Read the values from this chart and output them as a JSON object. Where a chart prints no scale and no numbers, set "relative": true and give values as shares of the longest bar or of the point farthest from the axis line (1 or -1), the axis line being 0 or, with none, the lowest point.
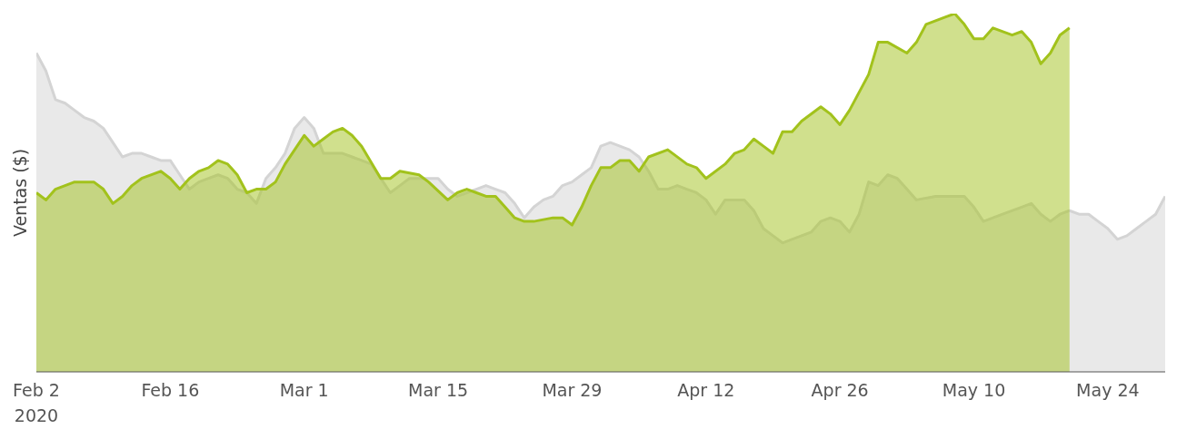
{
  "chart_data": {
    "type": "area",
    "ylabel": "Ventas ($)",
    "relative": true,
    "grid": false,
    "legend": false,
    "marker": "none",
    "xlim": [
      "2020-02-02",
      "2020-05-30"
    ],
    "xticks": [
      {
        "value": "2020-02-02",
        "label": "Feb 2\n2020"
      },
      {
        "value": "2020-02-16",
        "label": "Feb 16"
      },
      {
        "value": "2020-03-01",
        "label": "Mar 1"
      },
      {
        "value": "2020-03-15",
        "label": "Mar 15"
      },
      {
        "value": "2020-03-29",
        "label": "Mar 29"
      },
      {
        "value": "2020-04-12",
        "label": "Apr 12"
      },
      {
        "value": "2020-04-26",
        "label": "Apr 26"
      },
      {
        "value": "2020-05-10",
        "label": "May 10"
      },
      {
        "value": "2020-05-24",
        "label": "May 24"
      }
    ],
    "series": [
      {
        "color": "#d4d4d4",
        "x": [
          "2020-02-02",
          "2020-02-03",
          "2020-02-04",
          "2020-02-05",
          "2020-02-06",
          "2020-02-07",
          "2020-02-08",
          "2020-02-09",
          "2020-02-10",
          "2020-02-11",
          "2020-02-12",
          "2020-02-13",
          "2020-02-14",
          "2020-02-15",
          "2020-02-16",
          "2020-02-17",
          "2020-02-18",
          "2020-02-19",
          "2020-02-20",
          "2020-02-21",
          "2020-02-22",
          "2020-02-23",
          "2020-02-24",
          "2020-02-25",
          "2020-02-26",
          "2020-02-27",
          "2020-02-28",
          "2020-02-29",
          "2020-03-01",
          "2020-03-02",
          "2020-03-03",
          "2020-03-04",
          "2020-03-05",
          "2020-03-06",
          "2020-03-07",
          "2020-03-08",
          "2020-03-09",
          "2020-03-10",
          "2020-03-11",
          "2020-03-12",
          "2020-03-13",
          "2020-03-14",
          "2020-03-15",
          "2020-03-16",
          "2020-03-17",
          "2020-03-18",
          "2020-03-19",
          "2020-03-20",
          "2020-03-21",
          "2020-03-22",
          "2020-03-23",
          "2020-03-24",
          "2020-03-25",
          "2020-03-26",
          "2020-03-27",
          "2020-03-28",
          "2020-03-29",
          "2020-03-30",
          "2020-03-31",
          "2020-04-01",
          "2020-04-02",
          "2020-04-03",
          "2020-04-04",
          "2020-04-05",
          "2020-04-06",
          "2020-04-07",
          "2020-04-08",
          "2020-04-09",
          "2020-04-10",
          "2020-04-11",
          "2020-04-12",
          "2020-04-13",
          "2020-04-14",
          "2020-04-15",
          "2020-04-16",
          "2020-04-17",
          "2020-04-18",
          "2020-04-19",
          "2020-04-20",
          "2020-04-22",
          "2020-04-23",
          "2020-04-24",
          "2020-04-25",
          "2020-04-26",
          "2020-04-27",
          "2020-04-28",
          "2020-04-29",
          "2020-04-30",
          "2020-05-01",
          "2020-05-02",
          "2020-05-03",
          "2020-05-04",
          "2020-05-06",
          "2020-05-08",
          "2020-05-09",
          "2020-05-10",
          "2020-05-11",
          "2020-05-12",
          "2020-05-13",
          "2020-05-15",
          "2020-05-16",
          "2020-05-17",
          "2020-05-18",
          "2020-05-19",
          "2020-05-20",
          "2020-05-21",
          "2020-05-22",
          "2020-05-23",
          "2020-05-24",
          "2020-05-25",
          "2020-05-26",
          "2020-05-27",
          "2020-05-28",
          "2020-05-29",
          "2020-05-30"
        ],
        "values": [
          0.89,
          0.84,
          0.76,
          0.75,
          0.73,
          0.71,
          0.7,
          0.68,
          0.64,
          0.6,
          0.61,
          0.61,
          0.6,
          0.59,
          0.59,
          0.55,
          0.51,
          0.53,
          0.54,
          0.55,
          0.54,
          0.51,
          0.5,
          0.47,
          0.54,
          0.57,
          0.61,
          0.68,
          0.71,
          0.68,
          0.61,
          0.61,
          0.61,
          0.6,
          0.59,
          0.58,
          0.54,
          0.5,
          0.52,
          0.54,
          0.54,
          0.54,
          0.54,
          0.51,
          0.49,
          0.5,
          0.51,
          0.52,
          0.51,
          0.5,
          0.47,
          0.43,
          0.46,
          0.48,
          0.49,
          0.52,
          0.53,
          0.55,
          0.57,
          0.63,
          0.64,
          0.63,
          0.62,
          0.6,
          0.56,
          0.51,
          0.51,
          0.52,
          0.51,
          0.5,
          0.48,
          0.44,
          0.48,
          0.48,
          0.48,
          0.45,
          0.4,
          0.38,
          0.36,
          0.38,
          0.39,
          0.42,
          0.43,
          0.42,
          0.39,
          0.44,
          0.53,
          0.52,
          0.55,
          0.54,
          0.51,
          0.48,
          0.49,
          0.49,
          0.49,
          0.46,
          0.42,
          0.43,
          0.44,
          0.46,
          0.47,
          0.44,
          0.42,
          0.44,
          0.45,
          0.44,
          0.44,
          0.42,
          0.4,
          0.37,
          0.38,
          0.4,
          0.42,
          0.44,
          0.49
        ]
      },
      {
        "color": "#a2c21c",
        "x": [
          "2020-02-02",
          "2020-02-03",
          "2020-02-04",
          "2020-02-06",
          "2020-02-08",
          "2020-02-09",
          "2020-02-10",
          "2020-02-11",
          "2020-02-12",
          "2020-02-13",
          "2020-02-15",
          "2020-02-16",
          "2020-02-17",
          "2020-02-18",
          "2020-02-19",
          "2020-02-20",
          "2020-02-21",
          "2020-02-22",
          "2020-02-23",
          "2020-02-24",
          "2020-02-25",
          "2020-02-26",
          "2020-02-27",
          "2020-02-28",
          "2020-03-01",
          "2020-03-02",
          "2020-03-03",
          "2020-03-04",
          "2020-03-05",
          "2020-03-06",
          "2020-03-07",
          "2020-03-09",
          "2020-03-10",
          "2020-03-11",
          "2020-03-13",
          "2020-03-14",
          "2020-03-16",
          "2020-03-17",
          "2020-03-18",
          "2020-03-19",
          "2020-03-20",
          "2020-03-21",
          "2020-03-22",
          "2020-03-23",
          "2020-03-24",
          "2020-03-25",
          "2020-03-27",
          "2020-03-28",
          "2020-03-29",
          "2020-03-30",
          "2020-03-31",
          "2020-04-01",
          "2020-04-02",
          "2020-04-03",
          "2020-04-04",
          "2020-04-05",
          "2020-04-06",
          "2020-04-08",
          "2020-04-10",
          "2020-04-11",
          "2020-04-12",
          "2020-04-14",
          "2020-04-15",
          "2020-04-16",
          "2020-04-17",
          "2020-04-18",
          "2020-04-19",
          "2020-04-20",
          "2020-04-21",
          "2020-04-22",
          "2020-04-24",
          "2020-04-25",
          "2020-04-26",
          "2020-04-27",
          "2020-04-28",
          "2020-04-29",
          "2020-04-30",
          "2020-05-01",
          "2020-05-03",
          "2020-05-04",
          "2020-05-05",
          "2020-05-07",
          "2020-05-08",
          "2020-05-09",
          "2020-05-10",
          "2020-05-11",
          "2020-05-12",
          "2020-05-14",
          "2020-05-15",
          "2020-05-16",
          "2020-05-17",
          "2020-05-18",
          "2020-05-19",
          "2020-05-20"
        ],
        "values": [
          0.5,
          0.48,
          0.51,
          0.53,
          0.53,
          0.51,
          0.47,
          0.49,
          0.52,
          0.54,
          0.56,
          0.54,
          0.51,
          0.54,
          0.56,
          0.57,
          0.59,
          0.58,
          0.55,
          0.5,
          0.51,
          0.51,
          0.53,
          0.58,
          0.66,
          0.63,
          0.65,
          0.67,
          0.68,
          0.66,
          0.63,
          0.54,
          0.54,
          0.56,
          0.55,
          0.53,
          0.48,
          0.5,
          0.51,
          0.5,
          0.49,
          0.49,
          0.46,
          0.43,
          0.42,
          0.42,
          0.43,
          0.43,
          0.41,
          0.46,
          0.52,
          0.57,
          0.57,
          0.59,
          0.59,
          0.56,
          0.6,
          0.62,
          0.58,
          0.57,
          0.54,
          0.58,
          0.61,
          0.62,
          0.65,
          0.63,
          0.61,
          0.67,
          0.67,
          0.7,
          0.74,
          0.72,
          0.69,
          0.73,
          0.78,
          0.83,
          0.92,
          0.92,
          0.89,
          0.92,
          0.97,
          0.99,
          1,
          0.97,
          0.93,
          0.93,
          0.96,
          0.94,
          0.95,
          0.92,
          0.86,
          0.89,
          0.94,
          0.96
        ]
      }
    ]
  }
}
